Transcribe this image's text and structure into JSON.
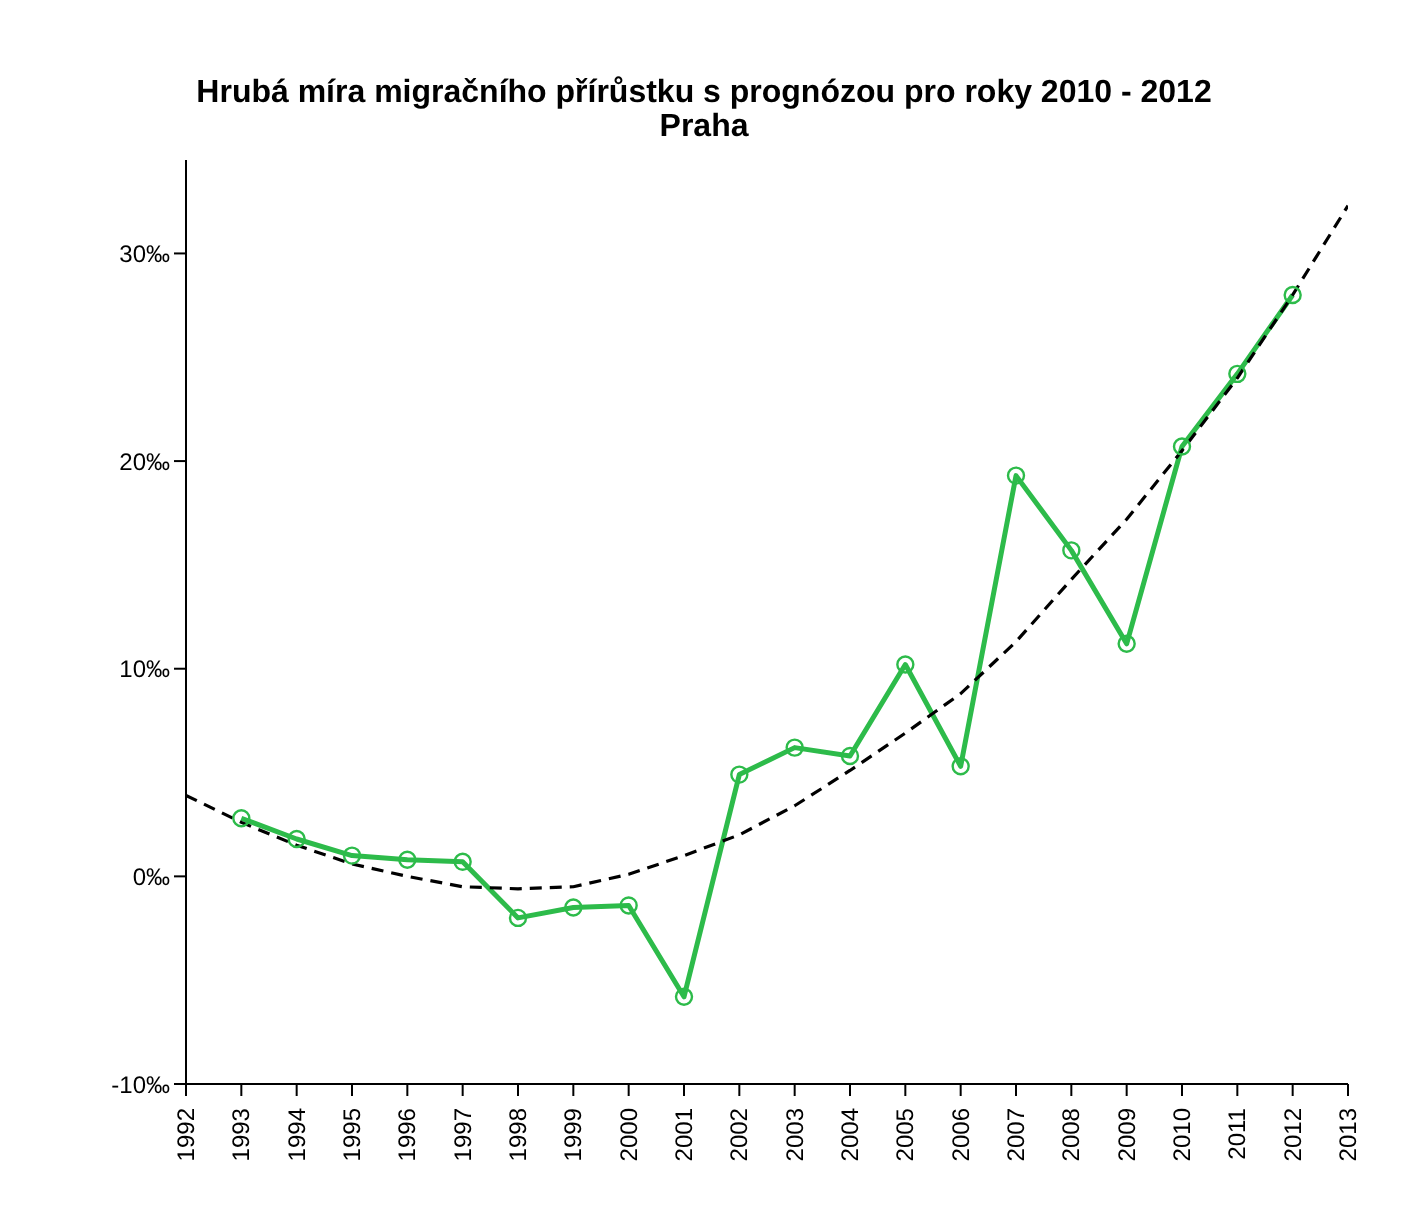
{
  "chart_data": {
    "type": "line",
    "title": "Hrubá míra migračního přírůstku s prognózou pro roky 2010 - 2012",
    "subtitle": "Praha",
    "xlim": [
      1992,
      2013
    ],
    "xticks": [
      1992,
      1993,
      1994,
      1995,
      1996,
      1997,
      1998,
      1999,
      2000,
      2001,
      2002,
      2003,
      2004,
      2005,
      2006,
      2007,
      2008,
      2009,
      2010,
      2011,
      2012,
      2013
    ],
    "ylim": [
      -10,
      34.5
    ],
    "yticks": [
      {
        "value": -10,
        "label": "-10‰"
      },
      {
        "value": 0,
        "label": "0‰"
      },
      {
        "value": 10,
        "label": "10‰"
      },
      {
        "value": 20,
        "label": "20‰"
      },
      {
        "value": 30,
        "label": "30‰"
      }
    ],
    "grid": false,
    "series": [
      {
        "color": "#2dbb4a",
        "marker": "circle",
        "line_style": "solid",
        "x": [
          1993,
          1994,
          1995,
          1996,
          1997,
          1998,
          1999,
          2000,
          2001,
          2002,
          2003,
          2004,
          2005,
          2006,
          2007,
          2008,
          2009,
          2010,
          2011,
          2012
        ],
        "values": [
          2.8,
          1.8,
          1.0,
          0.8,
          0.7,
          -2.0,
          -1.5,
          -1.4,
          -5.8,
          4.9,
          6.2,
          5.8,
          10.2,
          5.3,
          19.3,
          15.7,
          11.2,
          20.7,
          24.2,
          28.0
        ]
      },
      {
        "color": "#000000",
        "marker": "none",
        "line_style": "dashed",
        "x": [
          1992,
          1993,
          1994,
          1995,
          1996,
          1997,
          1998,
          1999,
          2000,
          2001,
          2002,
          2003,
          2004,
          2005,
          2006,
          2007,
          2008,
          2009,
          2010,
          2011,
          2012,
          2013
        ],
        "values": [
          3.9,
          2.6,
          1.5,
          0.6,
          0.0,
          -0.5,
          -0.6,
          -0.5,
          0.1,
          1.0,
          2.0,
          3.4,
          5.1,
          6.9,
          8.8,
          11.3,
          14.3,
          17.2,
          20.5,
          24.0,
          28.0,
          32.3
        ]
      }
    ]
  }
}
